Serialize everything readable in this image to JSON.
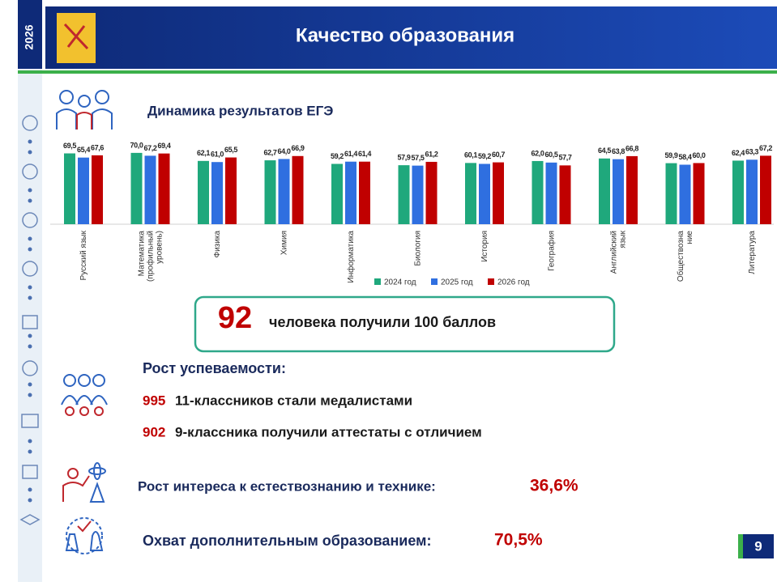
{
  "header": {
    "year": "2026",
    "title": "Качество образования"
  },
  "chart_data": {
    "type": "bar",
    "title": "Динамика результатов  ЕГЭ",
    "categories": [
      "Русский язык",
      "Математика\n(профильный\nуровень)",
      "Физика",
      "Химия",
      "Информатика",
      "Биология",
      "История",
      "География",
      "Английский\nязык",
      "Обществозна\nние",
      "Литература"
    ],
    "series": [
      {
        "name": "2024 год",
        "color": "#1fa87c",
        "values": [
          69.5,
          70.0,
          62.1,
          62.7,
          59.2,
          57.9,
          60.1,
          62.0,
          64.5,
          59.9,
          62.4
        ],
        "value_labels": [
          "69,5",
          "70,0",
          "62,1",
          "62,7",
          "59,2",
          "57,9",
          "60,1",
          "62,0",
          "64,5",
          "59,9",
          "62,4"
        ]
      },
      {
        "name": "2025 год",
        "color": "#2f6fe0",
        "values": [
          65.4,
          67.2,
          61.0,
          64.0,
          61.4,
          57.5,
          59.2,
          60.5,
          63.8,
          58.4,
          63.3
        ],
        "value_labels": [
          "65,4",
          "67,2",
          "61,0",
          "64,0",
          "61,4",
          "57,5",
          "59,2",
          "60,5",
          "63,8",
          "58,4",
          "63,3"
        ]
      },
      {
        "name": "2026 год",
        "color": "#c00000",
        "values": [
          67.6,
          69.4,
          65.5,
          66.9,
          61.4,
          61.2,
          60.7,
          57.7,
          66.8,
          60.0,
          67.2
        ],
        "value_labels": [
          "67,6",
          "69,4",
          "65,5",
          "66,9",
          "61,4",
          "61,2",
          "60,7",
          "57,7",
          "66,8",
          "60,0",
          "67,2"
        ]
      }
    ],
    "ylim": [
      0,
      85
    ],
    "legend": "bottom"
  },
  "highlight": {
    "number": "92",
    "text": "человека получили 100 баллов"
  },
  "growth": {
    "title": "Рост успеваемости:",
    "items": [
      {
        "number": "995",
        "text": "11-классников стали медалистами"
      },
      {
        "number": "902",
        "text": "9-классника получили аттестаты  с отличием"
      }
    ]
  },
  "interest": {
    "text": "Рост интереса к естествознанию и технике:",
    "value": "36,6%"
  },
  "coverage": {
    "text": "Охват дополнительным образованием:",
    "value": "70,5%"
  },
  "page_number": "9"
}
